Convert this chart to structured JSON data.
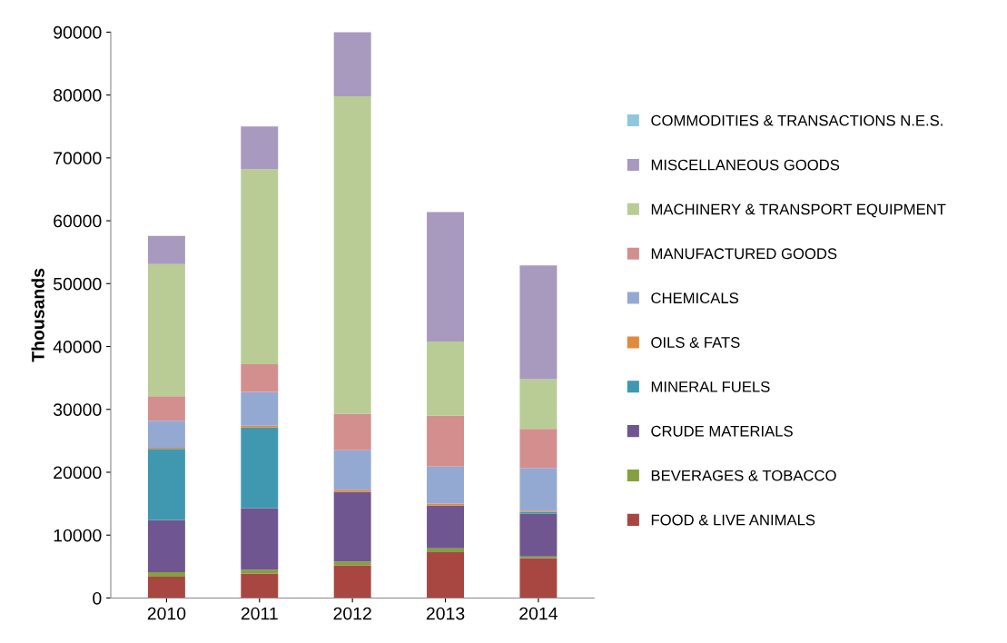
{
  "chart_data": {
    "type": "bar",
    "stacked": true,
    "ylabel": "Thousands",
    "categories": [
      "2010",
      "2011",
      "2012",
      "2013",
      "2014"
    ],
    "series": [
      {
        "name": "FOOD & LIVE ANIMALS",
        "color": "#a84742",
        "values": [
          3400,
          3900,
          5200,
          7300,
          6300
        ]
      },
      {
        "name": "BEVERAGES & TOBACCO",
        "color": "#84a040",
        "values": [
          700,
          600,
          600,
          600,
          300
        ]
      },
      {
        "name": "CRUDE MATERIALS",
        "color": "#6f5690",
        "values": [
          8300,
          9800,
          11100,
          6800,
          6800
        ]
      },
      {
        "name": "MINERAL FUELS",
        "color": "#3f98b0",
        "values": [
          11300,
          12800,
          0,
          0,
          300
        ]
      },
      {
        "name": "OILS & FATS",
        "color": "#e08a3c",
        "values": [
          200,
          300,
          300,
          300,
          200
        ]
      },
      {
        "name": "CHEMICALS",
        "color": "#94a9d2",
        "values": [
          4300,
          5400,
          6300,
          5900,
          6800
        ]
      },
      {
        "name": "MANUFACTURED GOODS",
        "color": "#d38f8e",
        "values": [
          3900,
          4400,
          5800,
          8100,
          6200
        ]
      },
      {
        "name": "MACHINERY & TRANSPORT EQUIPMENT",
        "color": "#b9cc95",
        "values": [
          21000,
          31000,
          50500,
          11800,
          7900
        ]
      },
      {
        "name": "MISCELLANEOUS GOODS",
        "color": "#a899bf",
        "values": [
          4500,
          6800,
          10400,
          20600,
          18100
        ]
      },
      {
        "name": "COMMODITIES & TRANSACTIONS N.E.S.",
        "color": "#8fc8dc",
        "values": [
          0,
          0,
          0,
          0,
          0
        ]
      }
    ],
    "ylim": [
      0,
      90000
    ],
    "yticks": [
      0,
      10000,
      20000,
      30000,
      40000,
      50000,
      60000,
      70000,
      80000,
      90000
    ],
    "grid": false,
    "legend": "right"
  }
}
